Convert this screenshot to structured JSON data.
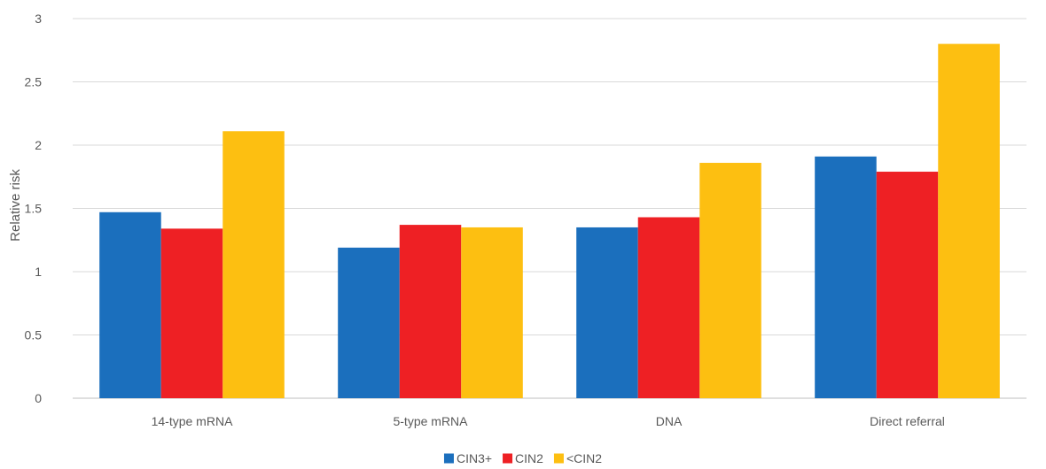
{
  "chart_data": {
    "type": "bar",
    "title": "",
    "xlabel": "",
    "ylabel": "Relative risk",
    "ylim": [
      0,
      3
    ],
    "yticks": [
      "0",
      "0.5",
      "1",
      "1.5",
      "2",
      "2.5",
      "3"
    ],
    "grid": true,
    "legend_position": "bottom",
    "categories": [
      "14-type mRNA",
      "5-type mRNA",
      "DNA",
      "Direct referral"
    ],
    "series": [
      {
        "name": "CIN3+",
        "color": "#1b6fbd",
        "values": [
          1.47,
          1.19,
          1.35,
          1.91
        ]
      },
      {
        "name": "CIN2",
        "color": "#ee2024",
        "values": [
          1.34,
          1.37,
          1.43,
          1.79
        ]
      },
      {
        "name": "<CIN2",
        "color": "#fdbf11",
        "values": [
          2.11,
          1.35,
          1.86,
          2.8
        ]
      }
    ]
  }
}
